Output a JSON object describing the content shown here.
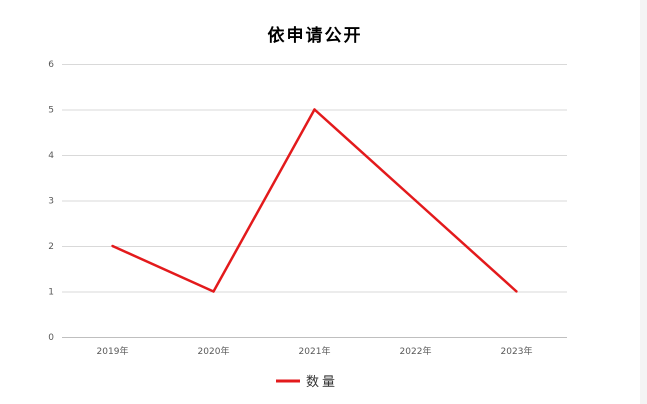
{
  "chart_data": {
    "type": "line",
    "title": "依申请公开",
    "categories": [
      "2019年",
      "2020年",
      "2021年",
      "2022年",
      "2023年"
    ],
    "series": [
      {
        "name": "数量",
        "values": [
          2,
          1,
          5,
          3,
          1
        ],
        "color": "#e31a1c"
      }
    ],
    "ylim": [
      0,
      6
    ],
    "yticks": [
      0,
      1,
      2,
      3,
      4,
      5,
      6
    ],
    "grid": true,
    "legend": "bottom",
    "xlabel": "",
    "ylabel": ""
  }
}
